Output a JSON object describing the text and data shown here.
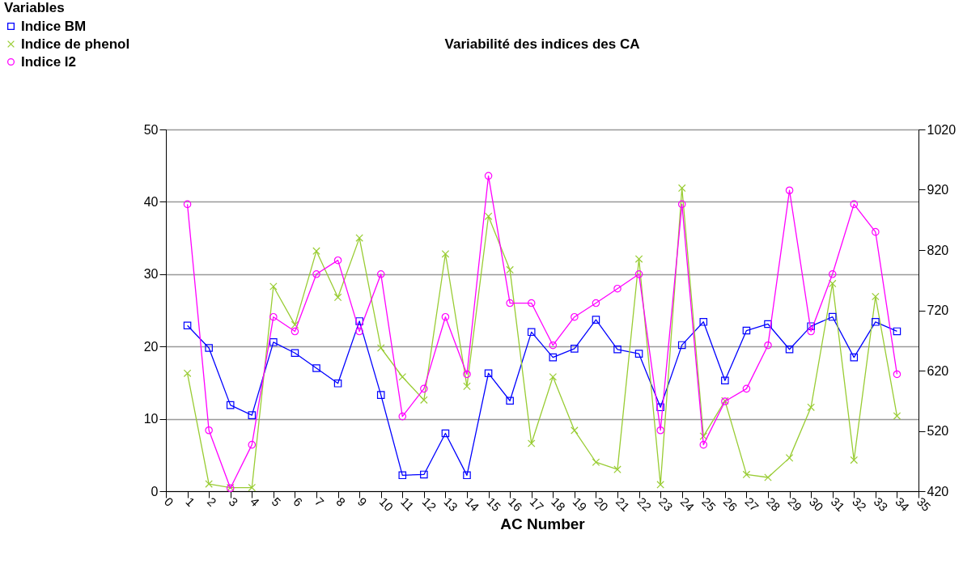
{
  "chart_data": {
    "type": "line",
    "title": "Variabilité des indices des CA",
    "xlabel": "AC Number",
    "legend_title": "Variables",
    "x": [
      1,
      2,
      3,
      4,
      5,
      6,
      7,
      8,
      9,
      10,
      11,
      12,
      13,
      14,
      15,
      16,
      17,
      18,
      19,
      20,
      21,
      22,
      23,
      24,
      25,
      26,
      27,
      28,
      29,
      30,
      31,
      32,
      33,
      34
    ],
    "xlim": [
      0,
      35
    ],
    "xticks": [
      0,
      1,
      2,
      3,
      4,
      5,
      6,
      7,
      8,
      9,
      10,
      11,
      12,
      13,
      14,
      15,
      16,
      17,
      18,
      19,
      20,
      21,
      22,
      23,
      24,
      25,
      26,
      27,
      28,
      29,
      30,
      31,
      32,
      33,
      34,
      35
    ],
    "ylim": [
      0,
      50
    ],
    "yticks": [
      0,
      10,
      20,
      30,
      40,
      50
    ],
    "y2lim": [
      420,
      1020
    ],
    "y2ticks": [
      420,
      520,
      620,
      720,
      820,
      920,
      1020
    ],
    "grid": "y",
    "legend": "top left",
    "series": [
      {
        "name": "Indice BM",
        "color": "#0000ff",
        "marker": "square",
        "values": [
          22.9,
          19.8,
          11.9,
          10.5,
          20.6,
          19.1,
          17.0,
          14.9,
          23.5,
          13.3,
          2.2,
          2.3,
          8.0,
          2.2,
          16.3,
          12.5,
          22.0,
          18.5,
          19.7,
          23.7,
          19.6,
          19.0,
          11.6,
          20.2,
          23.4,
          15.3,
          22.2,
          23.1,
          19.6,
          22.8,
          24.1,
          18.5,
          23.4,
          22.1
        ]
      },
      {
        "name": "Indice de phenol",
        "color": "#99cc33",
        "marker": "cross",
        "values": [
          16.3,
          1.0,
          0.5,
          0.5,
          28.3,
          23.0,
          33.2,
          26.8,
          35.0,
          19.8,
          15.8,
          12.6,
          32.8,
          14.5,
          38.0,
          30.6,
          6.6,
          15.8,
          8.4,
          4.0,
          3.0,
          32.1,
          0.9,
          41.9,
          7.6,
          12.5,
          2.3,
          1.9,
          4.6,
          11.6,
          28.7,
          4.3,
          26.9,
          10.4
        ]
      },
      {
        "name": "Indice I2",
        "color": "#ff00ff",
        "marker": "circle",
        "axis": "y2",
        "values": [
          896,
          521,
          425,
          497,
          709,
          685,
          780,
          803,
          685,
          780,
          544,
          590,
          709,
          614,
          943,
          732,
          732,
          662,
          709,
          732,
          756,
          780,
          521,
          896,
          497,
          569,
          590,
          662,
          919,
          685,
          780,
          896,
          850,
          614
        ]
      }
    ]
  }
}
